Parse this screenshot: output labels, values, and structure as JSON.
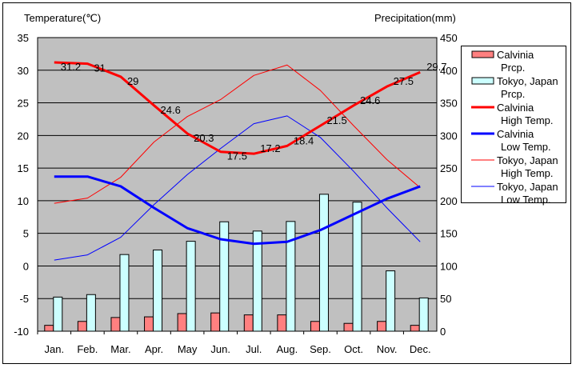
{
  "chart_data": {
    "type": "bar+line",
    "categories": [
      "Jan.",
      "Feb.",
      "Mar.",
      "Apr.",
      "May",
      "Jun.",
      "Jul.",
      "Aug.",
      "Sep.",
      "Oct.",
      "Nov.",
      "Dec."
    ],
    "ylabel_left": "Temperature(℃)",
    "ylabel_right": "Precipitation(mm)",
    "ylim_left": [
      -10,
      35
    ],
    "yticks_left": [
      35,
      30,
      25,
      20,
      15,
      10,
      5,
      0,
      -5,
      -10
    ],
    "ylim_right": [
      0,
      450
    ],
    "yticks_right": [
      450,
      400,
      350,
      300,
      250,
      200,
      150,
      100,
      50,
      0
    ],
    "grid": true,
    "legend_position": "right",
    "bar_series": [
      {
        "name": "Calvinia Prcp.",
        "legend": [
          "Calvinia",
          "Prcp."
        ],
        "color": "#ff8080",
        "values": [
          9,
          15,
          21,
          22,
          27,
          28,
          25,
          25,
          15,
          12,
          15,
          9
        ]
      },
      {
        "name": "Tokyo, Japan Prcp.",
        "legend": [
          "Tokyo, Japan",
          "Prcp."
        ],
        "color": "#ccffff",
        "values": [
          52.3,
          56.1,
          117.5,
          124.5,
          137.8,
          167.7,
          153.5,
          168.2,
          209.9,
          197.8,
          92.5,
          51.0
        ]
      }
    ],
    "line_series": [
      {
        "name": "Calvinia High Temp.",
        "legend": [
          "Calvinia",
          "High Temp."
        ],
        "color": "#ff0000",
        "width": 3,
        "values": [
          31.2,
          31,
          29,
          24.6,
          20.3,
          17.5,
          17.2,
          18.4,
          21.5,
          24.6,
          27.5,
          29.7
        ],
        "labels": [
          "31.2",
          "31",
          "29",
          "24.6",
          "20.3",
          "17.5",
          "17.2",
          "18.4",
          "21.5",
          "24.6",
          "27.5",
          "29.7"
        ]
      },
      {
        "name": "Calvinia Low Temp.",
        "legend": [
          "Calvinia",
          "Low Temp."
        ],
        "color": "#0000ff",
        "width": 3,
        "values": [
          13.7,
          13.7,
          12.2,
          8.9,
          5.8,
          4.1,
          3.4,
          3.7,
          5.5,
          7.9,
          10.3,
          12.2
        ]
      },
      {
        "name": "Tokyo, Japan High Temp.",
        "legend": [
          "Tokyo, Japan",
          "High Temp."
        ],
        "color": "#ff0000",
        "width": 1,
        "values": [
          9.6,
          10.4,
          13.6,
          19.0,
          22.9,
          25.5,
          29.2,
          30.8,
          26.9,
          21.5,
          16.3,
          12.0
        ]
      },
      {
        "name": "Tokyo, Japan Low Temp.",
        "legend": [
          "Tokyo, Japan",
          "Low Temp."
        ],
        "color": "#0000ff",
        "width": 1,
        "values": [
          0.9,
          1.7,
          4.4,
          9.4,
          14.0,
          18.0,
          21.8,
          23.0,
          19.7,
          14.5,
          8.9,
          3.7
        ]
      }
    ]
  }
}
